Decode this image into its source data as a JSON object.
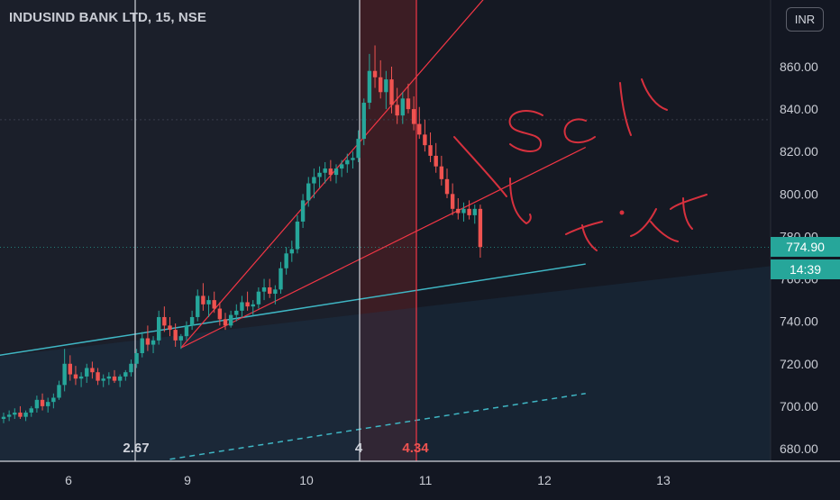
{
  "chart": {
    "title": "INDUSIND BANK LTD, 15, NSE",
    "currency": "INR",
    "current_price": "774.90",
    "countdown": "14:39",
    "annotations": {
      "fib_2_67": "2.67",
      "fib_4": "4",
      "fib_4_34": "4.34",
      "handwritten_sell": "Sell",
      "handwritten_tgt": "Tgt"
    }
  },
  "chart_data": {
    "type": "candlestick",
    "title": "INDUSIND BANK LTD, 15, NSE",
    "x_ticks": [
      "6",
      "9",
      "10",
      "11",
      "12",
      "13"
    ],
    "y_ticks": [
      "680.00",
      "700.00",
      "720.00",
      "740.00",
      "760.00",
      "780.00",
      "800.00",
      "820.00",
      "840.00",
      "860.00"
    ],
    "ylim": [
      675,
      885
    ],
    "last_price": 774.9,
    "colors": {
      "up": "#26a69a",
      "down": "#ef5350",
      "trendline": "#f23645",
      "channel": "#3fb6c4",
      "vertical": "#d1d4dc"
    },
    "candles": [
      [
        694,
        697,
        692,
        695
      ],
      [
        695,
        698,
        693,
        696
      ],
      [
        696,
        699,
        694,
        697
      ],
      [
        697,
        700,
        694,
        695
      ],
      [
        695,
        698,
        693,
        697
      ],
      [
        697,
        700,
        695,
        699
      ],
      [
        699,
        705,
        697,
        703
      ],
      [
        703,
        706,
        698,
        700
      ],
      [
        700,
        704,
        697,
        702
      ],
      [
        702,
        706,
        699,
        704
      ],
      [
        704,
        712,
        703,
        710
      ],
      [
        710,
        727,
        707,
        720
      ],
      [
        720,
        724,
        712,
        715
      ],
      [
        715,
        719,
        710,
        713
      ],
      [
        713,
        716,
        709,
        714
      ],
      [
        714,
        720,
        711,
        718
      ],
      [
        718,
        721,
        713,
        716
      ],
      [
        716,
        718,
        710,
        712
      ],
      [
        712,
        715,
        709,
        713
      ],
      [
        713,
        716,
        710,
        714
      ],
      [
        714,
        717,
        711,
        712
      ],
      [
        712,
        715,
        709,
        714
      ],
      [
        714,
        717,
        712,
        716
      ],
      [
        716,
        722,
        714,
        720
      ],
      [
        720,
        727,
        718,
        725
      ],
      [
        725,
        735,
        723,
        732
      ],
      [
        732,
        738,
        726,
        729
      ],
      [
        729,
        733,
        725,
        731
      ],
      [
        731,
        745,
        729,
        742
      ],
      [
        742,
        747,
        735,
        738
      ],
      [
        738,
        742,
        733,
        736
      ],
      [
        736,
        739,
        728,
        731
      ],
      [
        731,
        734,
        727,
        733
      ],
      [
        733,
        740,
        731,
        738
      ],
      [
        738,
        745,
        736,
        742
      ],
      [
        742,
        755,
        740,
        752
      ],
      [
        752,
        758,
        745,
        748
      ],
      [
        748,
        752,
        742,
        750
      ],
      [
        750,
        754,
        744,
        746
      ],
      [
        746,
        749,
        738,
        741
      ],
      [
        741,
        744,
        736,
        738
      ],
      [
        738,
        745,
        737,
        743
      ],
      [
        743,
        748,
        740,
        745
      ],
      [
        745,
        752,
        742,
        749
      ],
      [
        749,
        754,
        745,
        747
      ],
      [
        747,
        750,
        743,
        748
      ],
      [
        748,
        756,
        746,
        754
      ],
      [
        754,
        760,
        750,
        756
      ],
      [
        756,
        760,
        751,
        753
      ],
      [
        753,
        757,
        748,
        755
      ],
      [
        755,
        768,
        753,
        765
      ],
      [
        765,
        775,
        762,
        772
      ],
      [
        772,
        778,
        768,
        774
      ],
      [
        774,
        790,
        772,
        787
      ],
      [
        787,
        800,
        784,
        797
      ],
      [
        797,
        808,
        794,
        805
      ],
      [
        805,
        812,
        798,
        808
      ],
      [
        808,
        813,
        803,
        810
      ],
      [
        810,
        815,
        805,
        812
      ],
      [
        812,
        816,
        806,
        809
      ],
      [
        809,
        814,
        805,
        812
      ],
      [
        812,
        816,
        808,
        814
      ],
      [
        814,
        819,
        810,
        816
      ],
      [
        816,
        820,
        812,
        817
      ],
      [
        817,
        830,
        815,
        826
      ],
      [
        826,
        845,
        823,
        843
      ],
      [
        843,
        866,
        840,
        858
      ],
      [
        858,
        870,
        850,
        855
      ],
      [
        855,
        863,
        845,
        848
      ],
      [
        848,
        858,
        840,
        854
      ],
      [
        854,
        860,
        838,
        842
      ],
      [
        842,
        850,
        833,
        837
      ],
      [
        837,
        848,
        833,
        845
      ],
      [
        845,
        852,
        838,
        840
      ],
      [
        840,
        846,
        830,
        833
      ],
      [
        833,
        841,
        826,
        828
      ],
      [
        828,
        835,
        820,
        823
      ],
      [
        823,
        829,
        815,
        818
      ],
      [
        818,
        824,
        810,
        813
      ],
      [
        813,
        818,
        804,
        807
      ],
      [
        807,
        812,
        798,
        800
      ],
      [
        800,
        805,
        790,
        793
      ],
      [
        793,
        798,
        788,
        791
      ],
      [
        791,
        796,
        787,
        793
      ],
      [
        793,
        797,
        788,
        790
      ],
      [
        790,
        795,
        786,
        793
      ],
      [
        793,
        795,
        770,
        775
      ]
    ],
    "lines": [
      {
        "name": "channel-upper",
        "from": [
          -2,
          723.5
        ],
        "to": [
          105,
          767
        ]
      },
      {
        "name": "channel-lower",
        "from": [
          30,
          675
        ],
        "to": [
          105,
          706
        ]
      },
      {
        "name": "trendline-steep",
        "from": [
          32,
          727.5
        ],
        "to": [
          88,
          896
        ]
      },
      {
        "name": "trendline-mid",
        "from": [
          32,
          727.5
        ],
        "to": [
          105,
          822
        ]
      }
    ]
  }
}
